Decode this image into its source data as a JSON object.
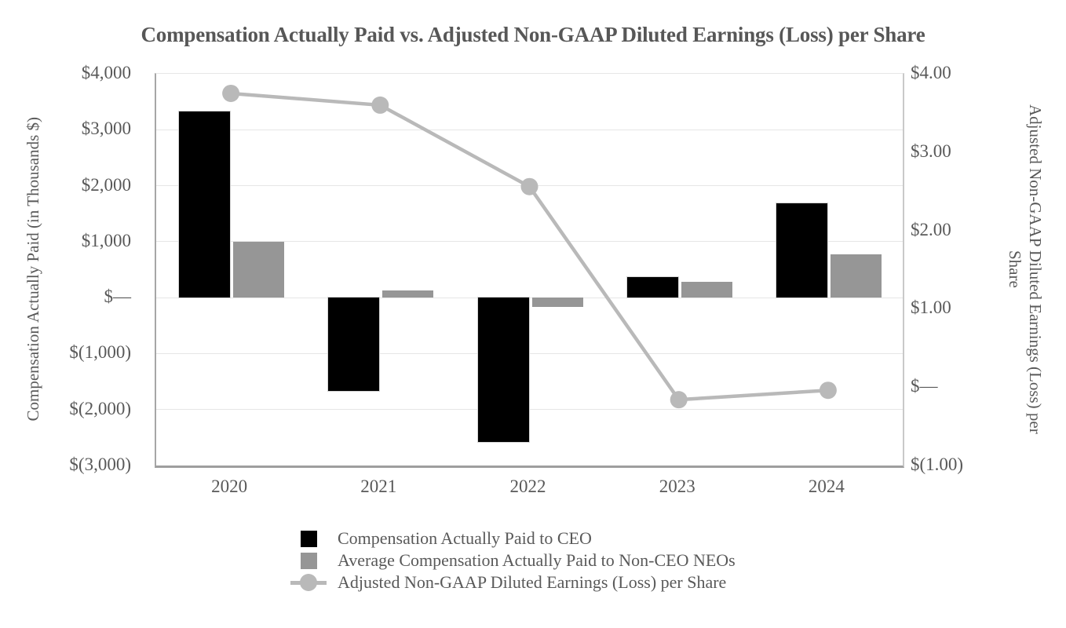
{
  "chart_data": {
    "type": "combo-bar-line",
    "title": "Compensation Actually Paid vs. Adjusted Non-GAAP Diluted Earnings (Loss) per Share",
    "categories": [
      "2020",
      "2021",
      "2022",
      "2023",
      "2024"
    ],
    "series": [
      {
        "name": "Compensation Actually Paid to CEO",
        "type": "bar",
        "axis": "left",
        "color": "#000000",
        "values": [
          3330,
          -1670,
          -2580,
          370,
          1680
        ]
      },
      {
        "name": "Average Compensation Actually Paid to Non-CEO NEOs",
        "type": "bar",
        "axis": "left",
        "color": "#969696",
        "values": [
          1000,
          130,
          -160,
          280,
          780
        ]
      },
      {
        "name": "Adjusted Non-GAAP Diluted Earnings (Loss) per Share",
        "type": "line",
        "axis": "right",
        "color": "#b9b9b9",
        "marker": "circle",
        "values": [
          3.75,
          3.6,
          2.56,
          -0.16,
          -0.04
        ]
      }
    ],
    "left_axis": {
      "title": "Compensation Actually Paid (in Thousands $)",
      "min": -3000,
      "max": 4000,
      "tick_values": [
        4000,
        3000,
        2000,
        1000,
        0,
        -1000,
        -2000,
        -3000
      ],
      "tick_labels": [
        "$4,000",
        "$3,000",
        "$2,000",
        "$1,000",
        "$—",
        "$(1,000)",
        "$(2,000)",
        "$(3,000)"
      ]
    },
    "right_axis": {
      "title": "Adjusted Non-GAAP Diluted Earnings (Loss) per Share",
      "min": -1,
      "max": 4,
      "tick_values": [
        4,
        3,
        2,
        1,
        0,
        -1
      ],
      "tick_labels": [
        "$4.00",
        "$3.00",
        "$2.00",
        "$1.00",
        "$—",
        "$(1.00)"
      ]
    },
    "legend": [
      {
        "label": "Compensation Actually Paid to CEO",
        "swatch": "square",
        "color": "#000000"
      },
      {
        "label": "Average Compensation Actually Paid to Non-CEO NEOs",
        "swatch": "square",
        "color": "#969696"
      },
      {
        "label": "Adjusted Non-GAAP Diluted Earnings (Loss) per Share",
        "swatch": "line-marker",
        "color": "#b9b9b9"
      }
    ],
    "grid": "horizontal",
    "legend_position": "bottom",
    "text_color": "#595959"
  }
}
